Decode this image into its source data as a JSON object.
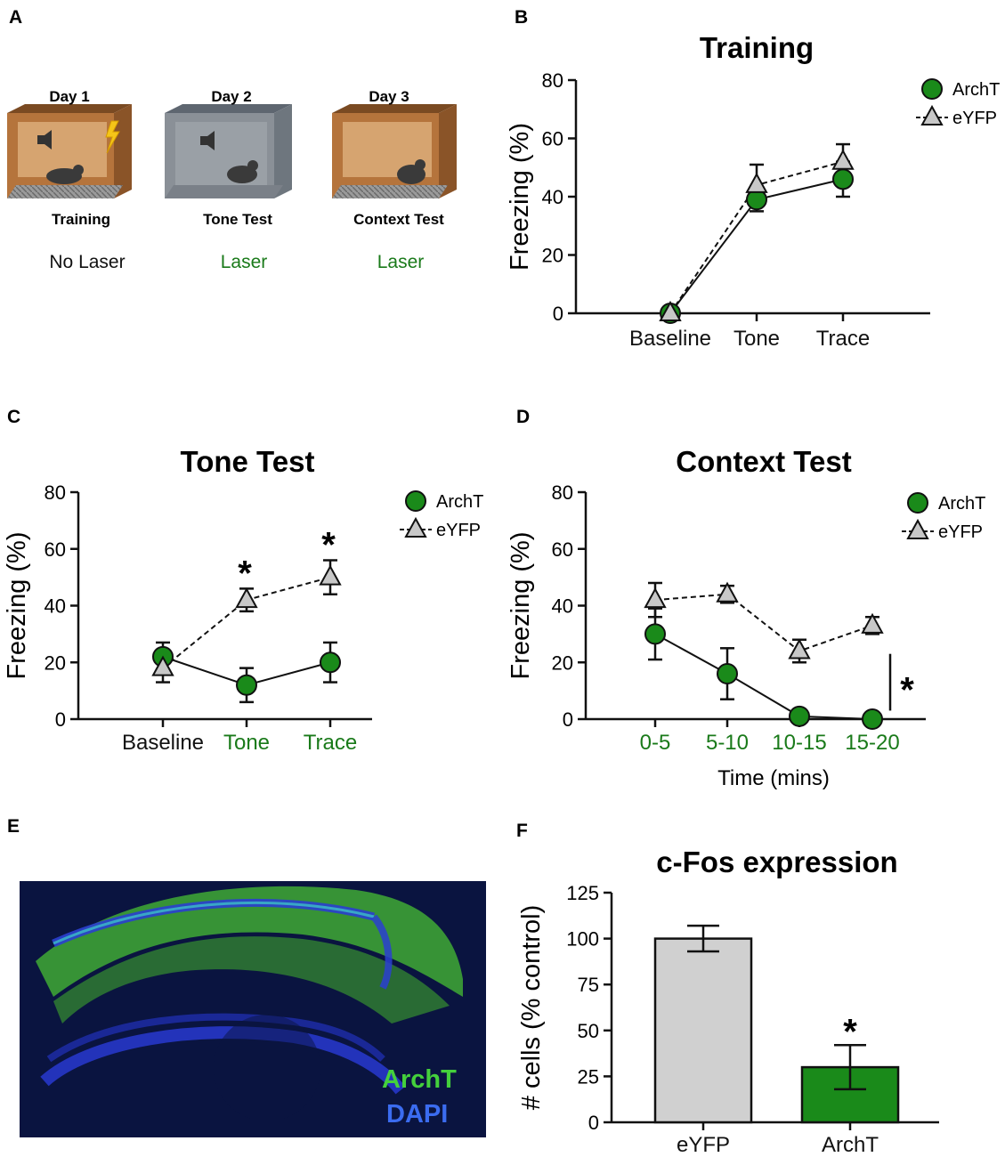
{
  "panels": {
    "A": "A",
    "B": "B",
    "C": "C",
    "D": "D",
    "E": "E",
    "F": "F"
  },
  "colors": {
    "archt": "#1a8a1a",
    "eyfp": "#c8c8c8",
    "green_text": "#1a7a1a",
    "box_brown": "#b5743c",
    "box_gray": "#8a9097"
  },
  "schematic": {
    "days": [
      {
        "day": "Day 1",
        "phase": "Training",
        "laser": "No Laser",
        "laser_on": false
      },
      {
        "day": "Day 2",
        "phase": "Tone Test",
        "laser": "Laser",
        "laser_on": true
      },
      {
        "day": "Day 3",
        "phase": "Context Test",
        "laser": "Laser",
        "laser_on": true
      }
    ]
  },
  "micrograph": {
    "label1": "ArchT",
    "label2": "DAPI"
  },
  "chart_data": [
    {
      "id": "B",
      "type": "line",
      "title": "Training",
      "ylabel": "Freezing (%)",
      "xlabel": "",
      "categories": [
        "Baseline",
        "Tone",
        "Trace"
      ],
      "category_green": [
        false,
        false,
        false
      ],
      "ylim": [
        0,
        80
      ],
      "yticks": [
        0,
        20,
        40,
        60,
        80
      ],
      "series": [
        {
          "name": "ArchT",
          "values": [
            0,
            39,
            46
          ],
          "errors": [
            0,
            4,
            6
          ]
        },
        {
          "name": "eYFP",
          "values": [
            0,
            44,
            52
          ],
          "errors": [
            0,
            7,
            6
          ]
        }
      ],
      "legend": [
        "ArchT",
        "eYFP"
      ],
      "stars": []
    },
    {
      "id": "C",
      "type": "line",
      "title": "Tone Test",
      "ylabel": "Freezing (%)",
      "xlabel": "",
      "categories": [
        "Baseline",
        "Tone",
        "Trace"
      ],
      "category_green": [
        false,
        true,
        true
      ],
      "ylim": [
        0,
        80
      ],
      "yticks": [
        0,
        20,
        40,
        60,
        80
      ],
      "series": [
        {
          "name": "ArchT",
          "values": [
            22,
            12,
            20
          ],
          "errors": [
            5,
            6,
            7
          ]
        },
        {
          "name": "eYFP",
          "values": [
            18,
            42,
            50
          ],
          "errors": [
            5,
            4,
            6
          ]
        }
      ],
      "legend": [
        "ArchT",
        "eYFP"
      ],
      "stars": [
        {
          "index": 1,
          "label": "*"
        },
        {
          "index": 2,
          "label": "*"
        }
      ]
    },
    {
      "id": "D",
      "type": "line",
      "title": "Context Test",
      "ylabel": "Freezing (%)",
      "xlabel": "Time (mins)",
      "categories": [
        "0-5",
        "5-10",
        "10-15",
        "15-20"
      ],
      "category_green": [
        true,
        true,
        true,
        true
      ],
      "ylim": [
        0,
        80
      ],
      "yticks": [
        0,
        20,
        40,
        60,
        80
      ],
      "series": [
        {
          "name": "ArchT",
          "values": [
            30,
            16,
            1,
            0
          ],
          "errors": [
            9,
            9,
            0,
            0
          ]
        },
        {
          "name": "eYFP",
          "values": [
            42,
            44,
            24,
            33
          ],
          "errors": [
            6,
            3,
            4,
            3
          ]
        }
      ],
      "legend": [
        "ArchT",
        "eYFP"
      ],
      "stars": [],
      "side_star": "*"
    },
    {
      "id": "F",
      "type": "bar",
      "title": "c-Fos expression",
      "ylabel": "# cells (% control)",
      "xlabel": "",
      "categories": [
        "eYFP",
        "ArchT"
      ],
      "values": [
        100,
        30
      ],
      "errors": [
        7,
        12
      ],
      "bar_colors": [
        "#d0d0d0",
        "#1a8a1a"
      ],
      "ylim": [
        0,
        125
      ],
      "yticks": [
        0,
        25,
        50,
        75,
        100,
        125
      ],
      "stars": [
        {
          "index": 1,
          "label": "*"
        }
      ]
    }
  ]
}
